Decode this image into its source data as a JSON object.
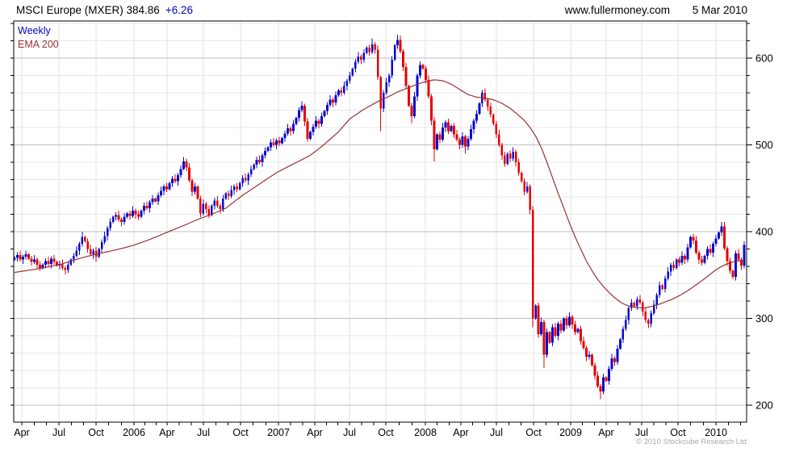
{
  "header": {
    "title_main": "MSCI Europe (MXER) 384.86",
    "title_change": "+6.26",
    "website": "www.fullermoney.com",
    "date": "5 Mar 2010"
  },
  "legend": {
    "series1": "Weekly",
    "series2": "EMA 200"
  },
  "footer": {
    "copyright": "© 2010 Stockcube Research Ltd"
  },
  "colors": {
    "up": "#0a0acd",
    "down": "#e60000",
    "ema": "#993333",
    "weekly_label": "#0000cc",
    "change_text": "#0000cc",
    "grid_minor": "#e8e8e8",
    "grid_major": "#bfbfbf",
    "grid_vertical": "#e0e0e0",
    "border": "#000000",
    "axis_text": "#000000",
    "copyright_text": "#a9a9a9"
  },
  "chart_data": {
    "type": "candlestick",
    "title": "MSCI Europe (MXER)",
    "interval": "Weekly",
    "overlay": "EMA 200",
    "last_close": 384.86,
    "change": 6.26,
    "as_of_date": "5 Mar 2010",
    "y_axis": {
      "major_ticks": [
        200,
        300,
        400,
        500,
        600
      ],
      "minor_step": 20,
      "range": [
        180,
        644
      ]
    },
    "x_axis": {
      "labels": [
        "Apr",
        "Jul",
        "Oct",
        "2006",
        "Apr",
        "Jul",
        "Oct",
        "2007",
        "Apr",
        "Jul",
        "Oct",
        "2008",
        "Apr",
        "Jul",
        "Oct",
        "2009",
        "Apr",
        "Jul",
        "Oct",
        "2010"
      ],
      "start": "Mar 2005",
      "end": "Mar 2010"
    },
    "weekly": {
      "first_open": 368,
      "closes": [
        370,
        373,
        368,
        371,
        374,
        369,
        365,
        368,
        362,
        358,
        362,
        366,
        363,
        369,
        365,
        361,
        363,
        358,
        356,
        362,
        368,
        372,
        378,
        386,
        394,
        389,
        380,
        374,
        378,
        371,
        380,
        388,
        395,
        404,
        411,
        417,
        419,
        414,
        411,
        417,
        421,
        418,
        424,
        420,
        417,
        424,
        430,
        427,
        434,
        438,
        435,
        442,
        447,
        452,
        449,
        456,
        461,
        458,
        465,
        472,
        481,
        474,
        459,
        446,
        452,
        438,
        421,
        432,
        426,
        419,
        430,
        436,
        430,
        426,
        438,
        444,
        441,
        448,
        452,
        449,
        456,
        462,
        459,
        466,
        472,
        477,
        483,
        480,
        488,
        493,
        497,
        503,
        500,
        505,
        502,
        508,
        513,
        519,
        516,
        524,
        531,
        540,
        545,
        527,
        507,
        515,
        521,
        528,
        524,
        533,
        539,
        546,
        552,
        549,
        557,
        563,
        560,
        568,
        574,
        580,
        588,
        596,
        602,
        598,
        606,
        612,
        607,
        616,
        610,
        578,
        542,
        560,
        572,
        580,
        598,
        615,
        621,
        608,
        590,
        568,
        545,
        533,
        556,
        580,
        592,
        588,
        575,
        556,
        528,
        495,
        512,
        506,
        520,
        526,
        516,
        522,
        512,
        506,
        500,
        510,
        498,
        507,
        518,
        528,
        536,
        548,
        560,
        552,
        544,
        535,
        524,
        512,
        500,
        488,
        478,
        490,
        484,
        492,
        480,
        468,
        458,
        446,
        452,
        425,
        300,
        315,
        282,
        296,
        258,
        284,
        272,
        290,
        280,
        294,
        286,
        300,
        292,
        302,
        293,
        284,
        288,
        274,
        266,
        256,
        258,
        246,
        234,
        222,
        216,
        232,
        228,
        242,
        254,
        250,
        265,
        276,
        288,
        298,
        312,
        318,
        314,
        322,
        318,
        308,
        298,
        294,
        306,
        316,
        327,
        338,
        334,
        346,
        354,
        362,
        358,
        368,
        364,
        372,
        368,
        382,
        394,
        390,
        376,
        368,
        364,
        372,
        380,
        376,
        386,
        392,
        399,
        406,
        381,
        366,
        355,
        348,
        375,
        368,
        361,
        384.86
      ],
      "wick_overrides": {
        "24": {
          "high": 400
        },
        "29": {
          "low": 365
        },
        "60": {
          "high": 486
        },
        "127": {
          "high": 623
        },
        "130": {
          "low": 516
        },
        "136": {
          "high": 627
        },
        "141": {
          "low": 525
        },
        "149": {
          "low": 481
        },
        "160": {
          "low": 490
        },
        "184": {
          "low": 290
        },
        "188": {
          "low": 243
        },
        "208": {
          "low": 207
        },
        "225": {
          "low": 289
        },
        "251": {
          "high": 411
        },
        "255": {
          "low": 345
        }
      }
    },
    "ema200": {
      "anchors": [
        [
          0,
          353
        ],
        [
          8,
          357
        ],
        [
          16,
          362
        ],
        [
          24,
          370
        ],
        [
          29,
          374
        ],
        [
          36,
          379
        ],
        [
          42,
          384
        ],
        [
          48,
          391
        ],
        [
          54,
          399
        ],
        [
          60,
          407
        ],
        [
          65,
          414
        ],
        [
          70,
          420
        ],
        [
          75,
          427
        ],
        [
          81,
          442
        ],
        [
          87,
          455
        ],
        [
          93,
          468
        ],
        [
          99,
          478
        ],
        [
          105,
          488
        ],
        [
          109,
          498
        ],
        [
          115,
          515
        ],
        [
          119,
          530
        ],
        [
          124,
          541
        ],
        [
          129,
          550
        ],
        [
          133,
          556
        ],
        [
          136,
          561
        ],
        [
          140,
          566
        ],
        [
          143,
          570
        ],
        [
          146,
          573
        ],
        [
          149,
          575
        ],
        [
          152,
          574
        ],
        [
          155,
          570
        ],
        [
          158,
          564
        ],
        [
          161,
          558
        ],
        [
          164,
          555
        ],
        [
          167,
          554
        ],
        [
          170,
          552
        ],
        [
          173,
          548
        ],
        [
          176,
          542
        ],
        [
          179,
          534
        ],
        [
          181,
          528
        ],
        [
          183,
          520
        ],
        [
          185,
          510
        ],
        [
          187,
          497
        ],
        [
          189,
          480
        ],
        [
          191,
          462
        ],
        [
          193,
          444
        ],
        [
          195,
          427
        ],
        [
          197,
          410
        ],
        [
          199,
          394
        ],
        [
          201,
          380
        ],
        [
          203,
          366
        ],
        [
          205,
          355
        ],
        [
          207,
          345
        ],
        [
          209,
          337
        ],
        [
          211,
          330
        ],
        [
          213,
          324
        ],
        [
          215,
          319
        ],
        [
          217,
          315.5
        ],
        [
          219,
          313.5
        ],
        [
          221,
          312.5
        ],
        [
          223,
          312
        ],
        [
          225,
          313
        ],
        [
          227,
          314.5
        ],
        [
          229,
          316.5
        ],
        [
          231,
          319
        ],
        [
          233,
          321.5
        ],
        [
          235,
          324.5
        ],
        [
          237,
          328
        ],
        [
          239,
          332
        ],
        [
          241,
          336.5
        ],
        [
          243,
          341
        ],
        [
          245,
          346
        ],
        [
          247,
          351
        ],
        [
          249,
          356
        ],
        [
          251,
          360
        ],
        [
          253,
          363
        ],
        [
          255,
          365
        ],
        [
          257,
          366.5
        ],
        [
          259,
          367
        ]
      ]
    }
  }
}
